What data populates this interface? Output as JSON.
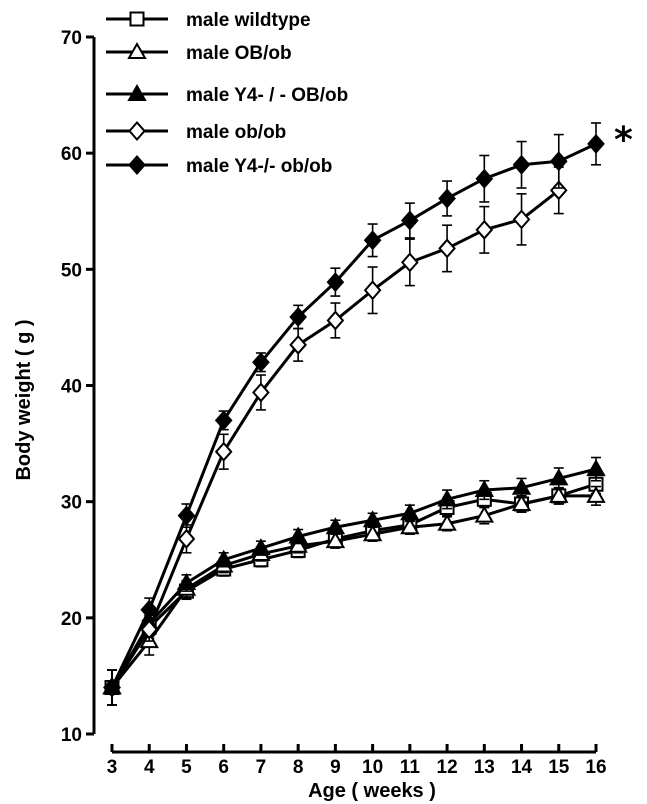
{
  "chart_data": {
    "type": "line",
    "title": "",
    "xlabel": "Age ( weeks )",
    "ylabel": "Body weight ( g )",
    "xlim": [
      3,
      16
    ],
    "ylim": [
      10,
      70
    ],
    "x_ticks": [
      3,
      4,
      5,
      6,
      7,
      8,
      9,
      10,
      11,
      12,
      13,
      14,
      15,
      16
    ],
    "y_ticks": [
      10,
      20,
      30,
      40,
      50,
      60,
      70
    ],
    "x_tick_labels": [
      "3",
      "4",
      "5",
      "6",
      "7",
      "8",
      "9",
      "10",
      "11",
      "12",
      "13",
      "14",
      "15",
      "16"
    ],
    "y_tick_labels": [
      "10",
      "20",
      "30",
      "40",
      "50",
      "60",
      "70"
    ],
    "legend_position": "top-left",
    "grid": false,
    "annotation": "*",
    "series": [
      {
        "name": "male  wildtype",
        "marker": "square-open",
        "x": [
          3,
          4,
          5,
          6,
          7,
          8,
          9,
          10,
          11,
          12,
          13,
          14,
          15,
          16
        ],
        "y": [
          14.0,
          19.2,
          22.3,
          24.2,
          25.0,
          25.8,
          26.8,
          27.5,
          28.0,
          29.5,
          30.2,
          29.8,
          30.5,
          31.5
        ],
        "err": [
          1.5,
          1.0,
          0.7,
          0.6,
          0.6,
          0.6,
          0.6,
          0.6,
          0.6,
          0.7,
          0.7,
          0.7,
          0.7,
          0.8
        ]
      },
      {
        "name": "male  OB/ob",
        "marker": "triangle-open",
        "x": [
          3,
          4,
          5,
          6,
          7,
          8,
          9,
          10,
          11,
          12,
          13,
          14,
          15,
          16
        ],
        "y": [
          14.0,
          18.0,
          22.5,
          24.5,
          25.5,
          26.2,
          26.6,
          27.2,
          27.8,
          28.1,
          28.8,
          29.8,
          30.5,
          30.5
        ],
        "err": [
          1.5,
          1.2,
          0.7,
          0.6,
          0.6,
          0.6,
          0.6,
          0.6,
          0.6,
          0.6,
          0.7,
          0.7,
          0.7,
          0.8
        ]
      },
      {
        "name": "male  Y4- / -  OB/ob",
        "marker": "triangle-filled",
        "x": [
          3,
          4,
          5,
          6,
          7,
          8,
          9,
          10,
          11,
          12,
          13,
          14,
          15,
          16
        ],
        "y": [
          14.0,
          19.5,
          23.0,
          25.0,
          26.0,
          27.0,
          27.8,
          28.4,
          29.0,
          30.2,
          31.0,
          31.2,
          32.0,
          32.8
        ],
        "err": [
          1.5,
          1.0,
          0.7,
          0.6,
          0.6,
          0.6,
          0.6,
          0.6,
          0.7,
          0.8,
          0.8,
          0.8,
          0.9,
          1.0
        ]
      },
      {
        "name": "male  ob/ob",
        "marker": "diamond-open",
        "x": [
          3,
          4,
          5,
          6,
          7,
          8,
          9,
          10,
          11,
          12,
          13,
          14,
          15
        ],
        "y": [
          14.0,
          19.0,
          26.8,
          34.3,
          39.4,
          43.5,
          45.6,
          48.2,
          50.6,
          51.8,
          53.4,
          54.3,
          56.8
        ],
        "err": [
          1.5,
          1.0,
          1.2,
          1.5,
          1.5,
          1.4,
          1.5,
          2.0,
          2.0,
          2.0,
          2.0,
          2.2,
          2.0
        ]
      },
      {
        "name": "male  Y4-/-   ob/ob",
        "marker": "diamond-filled",
        "x": [
          3,
          4,
          5,
          6,
          7,
          8,
          9,
          10,
          11,
          12,
          13,
          14,
          15,
          16
        ],
        "y": [
          14.0,
          20.7,
          28.8,
          37.0,
          42.0,
          45.9,
          48.9,
          52.5,
          54.2,
          56.1,
          57.8,
          59.0,
          59.3,
          60.8
        ],
        "err": [
          1.5,
          1.0,
          1.0,
          0.8,
          0.8,
          1.0,
          1.2,
          1.4,
          1.5,
          1.5,
          2.0,
          2.0,
          2.3,
          1.8
        ]
      }
    ]
  }
}
